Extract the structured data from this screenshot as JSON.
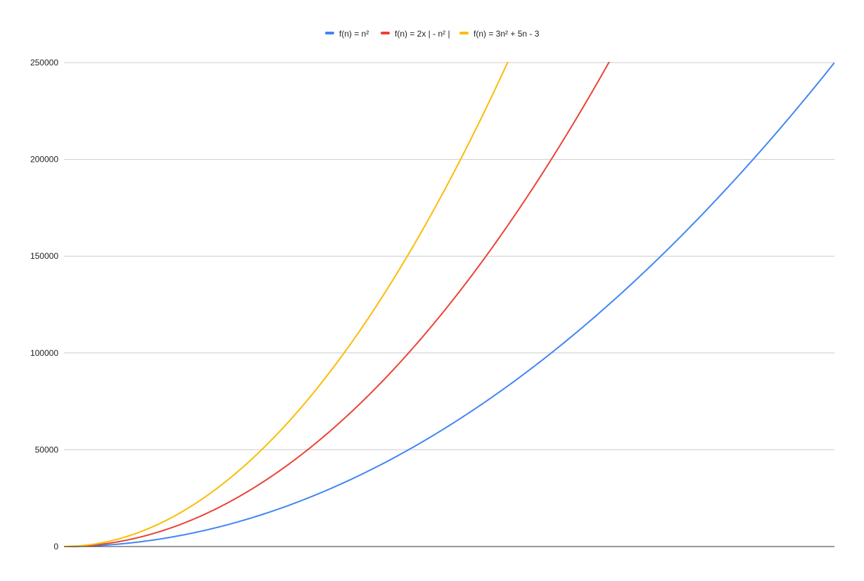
{
  "chart_data": {
    "type": "line",
    "title": "",
    "xlabel": "",
    "ylabel": "",
    "x_range": [
      0,
      500
    ],
    "ylim": [
      0,
      250000
    ],
    "y_ticks": [
      0,
      50000,
      100000,
      150000,
      200000,
      250000
    ],
    "y_tick_labels": [
      "0",
      "50000",
      "100000",
      "150000",
      "200000",
      "250000"
    ],
    "grid": true,
    "legend_position": "top",
    "series": [
      {
        "name": "f(n) = n²",
        "color": "#4285f4",
        "coefficients": [
          1,
          0,
          0
        ]
      },
      {
        "name": "f(n) = 2x | - n² |",
        "color": "#ea4335",
        "coefficients": [
          2,
          0,
          0
        ]
      },
      {
        "name": "f(n) = 3n² + 5n - 3",
        "color": "#fbbc04",
        "coefficients": [
          3,
          5,
          -3
        ]
      }
    ]
  }
}
